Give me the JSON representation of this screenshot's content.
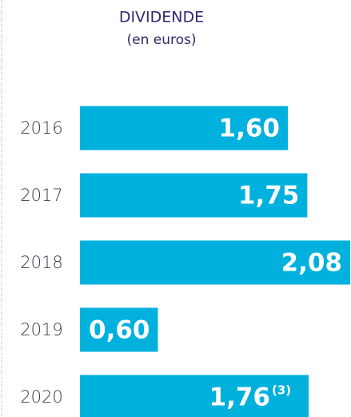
{
  "chart_data": {
    "type": "bar",
    "orientation": "horizontal",
    "title": "DIVIDENDE",
    "subtitle": "(en euros)",
    "categories": [
      "2016",
      "2017",
      "2018",
      "2019",
      "2020"
    ],
    "values": [
      1.6,
      1.75,
      2.08,
      0.6,
      1.76
    ],
    "value_labels": [
      "1,60",
      "1,75",
      "2,08",
      "0,60",
      "1,76"
    ],
    "annotation": "(3)",
    "color": "#00b1dd",
    "xlim": [
      0,
      2.08
    ]
  }
}
